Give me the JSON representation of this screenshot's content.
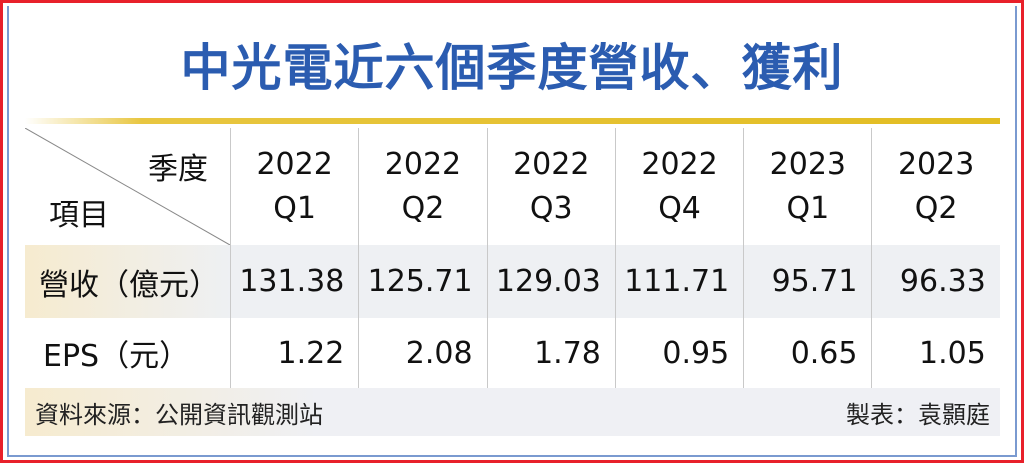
{
  "title": "中光電近六個季度營收、獲利",
  "colors": {
    "title": "#2b5cb0",
    "accent_rule": "#e2bd22",
    "border": "#e8202a"
  },
  "chart_data": {
    "type": "table",
    "title": "中光電近六個季度營收、獲利",
    "corner": {
      "column_header": "季度",
      "row_header": "項目"
    },
    "columns": [
      {
        "year": "2022",
        "quarter": "Q1"
      },
      {
        "year": "2022",
        "quarter": "Q2"
      },
      {
        "year": "2022",
        "quarter": "Q3"
      },
      {
        "year": "2022",
        "quarter": "Q4"
      },
      {
        "year": "2023",
        "quarter": "Q1"
      },
      {
        "year": "2023",
        "quarter": "Q2"
      }
    ],
    "rows": [
      {
        "label": "營收（億元）",
        "values": [
          "131.38",
          "125.71",
          "129.03",
          "111.71",
          "95.71",
          "96.33"
        ]
      },
      {
        "label": "EPS（元）",
        "values": [
          "1.22",
          "2.08",
          "1.78",
          "0.95",
          "0.65",
          "1.05"
        ]
      }
    ]
  },
  "footer": {
    "source": "資料來源：公開資訊觀測站",
    "credit": "製表：袁顥庭"
  }
}
